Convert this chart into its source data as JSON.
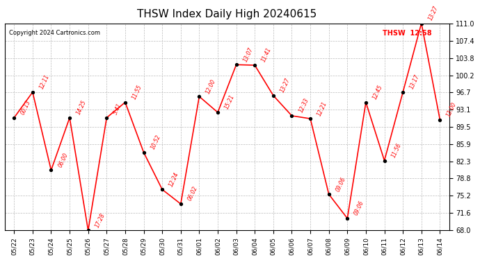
{
  "title": "THSW Index Daily High 20240615",
  "copyright": "Copyright 2024 Cartronics.com",
  "legend_text": "THSW  12:58",
  "legend_color": "red",
  "background_color": "#ffffff",
  "grid_color": "#bbbbbb",
  "line_color": "red",
  "point_color": "black",
  "dates": [
    "05/22",
    "05/23",
    "05/24",
    "05/25",
    "05/26",
    "05/27",
    "05/28",
    "05/29",
    "05/30",
    "05/31",
    "06/01",
    "06/02",
    "06/03",
    "06/04",
    "06/05",
    "06/06",
    "06/07",
    "06/08",
    "06/09",
    "06/10",
    "06/11",
    "06/12",
    "06/13",
    "06/14"
  ],
  "values": [
    91.4,
    96.7,
    80.5,
    91.4,
    68.0,
    91.4,
    94.6,
    84.2,
    76.5,
    73.5,
    95.8,
    92.5,
    102.4,
    102.3,
    96.0,
    91.8,
    91.2,
    75.5,
    70.5,
    94.6,
    82.5,
    96.7,
    111.0,
    91.0
  ],
  "time_labels": [
    "00:13",
    "12:11",
    "06:00",
    "14:25",
    "17:28",
    "5:41",
    "11:55",
    "10:52",
    "12:24",
    "06:02",
    "12:00",
    "15:21",
    "13:07",
    "11:41",
    "13:27",
    "12:33",
    "12:21",
    "09:06",
    "09:06",
    "12:45",
    "11:56",
    "13:17",
    "13:27",
    "13:00"
  ],
  "ylim": [
    68.0,
    111.0
  ],
  "yticks": [
    68.0,
    71.6,
    75.2,
    78.8,
    82.3,
    85.9,
    89.5,
    93.1,
    96.7,
    100.2,
    103.8,
    107.4,
    111.0
  ]
}
